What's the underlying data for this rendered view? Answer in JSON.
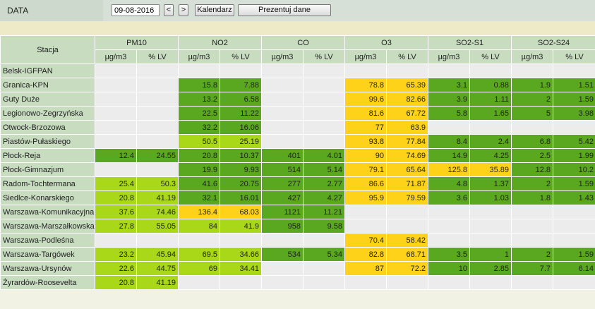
{
  "toolbar": {
    "label": "DATA",
    "date_value": "09-08-2016",
    "prev_label": "<",
    "next_label": ">",
    "calendar_label": "Kalendarz",
    "present_label": "Prezentuj dane"
  },
  "colors": {
    "dark_green": "#59a820",
    "light_green": "#a8d818",
    "yellow": "#ffd21a",
    "empty": "#ececec",
    "header": "#c8dcc0"
  },
  "table": {
    "station_header": "Stacja",
    "pollutants": [
      "PM10",
      "NO2",
      "CO",
      "O3",
      "SO2-S1",
      "SO2-S24"
    ],
    "units": [
      "µg/m3",
      "% LV"
    ],
    "rows": [
      {
        "station": "Belsk-IGFPAN",
        "cells": [
          [
            "",
            "e"
          ],
          [
            "",
            "e"
          ],
          [
            "",
            "e"
          ],
          [
            "",
            "e"
          ],
          [
            "",
            "e"
          ],
          [
            "",
            "e"
          ],
          [
            "",
            "e"
          ],
          [
            "",
            "e"
          ],
          [
            "",
            "e"
          ],
          [
            "",
            "e"
          ],
          [
            "",
            "e"
          ],
          [
            "",
            "e"
          ]
        ]
      },
      {
        "station": "Granica-KPN",
        "cells": [
          [
            "",
            "e"
          ],
          [
            "",
            "e"
          ],
          [
            "15.8",
            "dg"
          ],
          [
            "7.88",
            "dg"
          ],
          [
            "",
            "e"
          ],
          [
            "",
            "e"
          ],
          [
            "78.8",
            "yl"
          ],
          [
            "65.39",
            "yl"
          ],
          [
            "3.1",
            "dg"
          ],
          [
            "0.88",
            "dg"
          ],
          [
            "1.9",
            "dg"
          ],
          [
            "1.51",
            "dg"
          ]
        ]
      },
      {
        "station": "Guty Duże",
        "cells": [
          [
            "",
            "e"
          ],
          [
            "",
            "e"
          ],
          [
            "13.2",
            "dg"
          ],
          [
            "6.58",
            "dg"
          ],
          [
            "",
            "e"
          ],
          [
            "",
            "e"
          ],
          [
            "99.6",
            "yl"
          ],
          [
            "82.66",
            "yl"
          ],
          [
            "3.9",
            "dg"
          ],
          [
            "1.11",
            "dg"
          ],
          [
            "2",
            "dg"
          ],
          [
            "1.59",
            "dg"
          ]
        ]
      },
      {
        "station": "Legionowo-Zegrzyńska",
        "cells": [
          [
            "",
            "e"
          ],
          [
            "",
            "e"
          ],
          [
            "22.5",
            "dg"
          ],
          [
            "11.22",
            "dg"
          ],
          [
            "",
            "e"
          ],
          [
            "",
            "e"
          ],
          [
            "81.6",
            "yl"
          ],
          [
            "67.72",
            "yl"
          ],
          [
            "5.8",
            "dg"
          ],
          [
            "1.65",
            "dg"
          ],
          [
            "5",
            "dg"
          ],
          [
            "3.98",
            "dg"
          ]
        ]
      },
      {
        "station": "Otwock-Brzozowa",
        "cells": [
          [
            "",
            "e"
          ],
          [
            "",
            "e"
          ],
          [
            "32.2",
            "dg"
          ],
          [
            "16.06",
            "dg"
          ],
          [
            "",
            "e"
          ],
          [
            "",
            "e"
          ],
          [
            "77",
            "yl"
          ],
          [
            "63.9",
            "yl"
          ],
          [
            "",
            "e"
          ],
          [
            "",
            "e"
          ],
          [
            "",
            "e"
          ],
          [
            "",
            "e"
          ]
        ]
      },
      {
        "station": "Piastów-Pułaskiego",
        "cells": [
          [
            "",
            "e"
          ],
          [
            "",
            "e"
          ],
          [
            "50.5",
            "lg"
          ],
          [
            "25.19",
            "lg"
          ],
          [
            "",
            "e"
          ],
          [
            "",
            "e"
          ],
          [
            "93.8",
            "yl"
          ],
          [
            "77.84",
            "yl"
          ],
          [
            "8.4",
            "dg"
          ],
          [
            "2.4",
            "dg"
          ],
          [
            "6.8",
            "dg"
          ],
          [
            "5.42",
            "dg"
          ]
        ]
      },
      {
        "station": "Płock-Reja",
        "cells": [
          [
            "12.4",
            "dg"
          ],
          [
            "24.55",
            "dg"
          ],
          [
            "20.8",
            "dg"
          ],
          [
            "10.37",
            "dg"
          ],
          [
            "401",
            "dg"
          ],
          [
            "4.01",
            "dg"
          ],
          [
            "90",
            "yl"
          ],
          [
            "74.69",
            "yl"
          ],
          [
            "14.9",
            "dg"
          ],
          [
            "4.25",
            "dg"
          ],
          [
            "2.5",
            "dg"
          ],
          [
            "1.99",
            "dg"
          ]
        ]
      },
      {
        "station": "Płock-Gimnazjum",
        "cells": [
          [
            "",
            "e"
          ],
          [
            "",
            "e"
          ],
          [
            "19.9",
            "dg"
          ],
          [
            "9.93",
            "dg"
          ],
          [
            "514",
            "dg"
          ],
          [
            "5.14",
            "dg"
          ],
          [
            "79.1",
            "yl"
          ],
          [
            "65.64",
            "yl"
          ],
          [
            "125.8",
            "yl"
          ],
          [
            "35.89",
            "yl"
          ],
          [
            "12.8",
            "dg"
          ],
          [
            "10.2",
            "dg"
          ]
        ]
      },
      {
        "station": "Radom-Tochtermana",
        "cells": [
          [
            "25.4",
            "lg"
          ],
          [
            "50.3",
            "lg"
          ],
          [
            "41.6",
            "dg"
          ],
          [
            "20.75",
            "dg"
          ],
          [
            "277",
            "dg"
          ],
          [
            "2.77",
            "dg"
          ],
          [
            "86.6",
            "yl"
          ],
          [
            "71.87",
            "yl"
          ],
          [
            "4.8",
            "dg"
          ],
          [
            "1.37",
            "dg"
          ],
          [
            "2",
            "dg"
          ],
          [
            "1.59",
            "dg"
          ]
        ]
      },
      {
        "station": "Siedlce-Konarskiego",
        "cells": [
          [
            "20.8",
            "lg"
          ],
          [
            "41.19",
            "lg"
          ],
          [
            "32.1",
            "dg"
          ],
          [
            "16.01",
            "dg"
          ],
          [
            "427",
            "dg"
          ],
          [
            "4.27",
            "dg"
          ],
          [
            "95.9",
            "yl"
          ],
          [
            "79.59",
            "yl"
          ],
          [
            "3.6",
            "dg"
          ],
          [
            "1.03",
            "dg"
          ],
          [
            "1.8",
            "dg"
          ],
          [
            "1.43",
            "dg"
          ]
        ]
      },
      {
        "station": "Warszawa-Komunikacyjna",
        "cells": [
          [
            "37.6",
            "lg"
          ],
          [
            "74.46",
            "lg"
          ],
          [
            "136.4",
            "yl"
          ],
          [
            "68.03",
            "yl"
          ],
          [
            "1121",
            "dg"
          ],
          [
            "11.21",
            "dg"
          ],
          [
            "",
            "e"
          ],
          [
            "",
            "e"
          ],
          [
            "",
            "e"
          ],
          [
            "",
            "e"
          ],
          [
            "",
            "e"
          ],
          [
            "",
            "e"
          ]
        ]
      },
      {
        "station": "Warszawa-Marszałkowska",
        "cells": [
          [
            "27.8",
            "lg"
          ],
          [
            "55.05",
            "lg"
          ],
          [
            "84",
            "lg"
          ],
          [
            "41.9",
            "lg"
          ],
          [
            "958",
            "dg"
          ],
          [
            "9.58",
            "dg"
          ],
          [
            "",
            "e"
          ],
          [
            "",
            "e"
          ],
          [
            "",
            "e"
          ],
          [
            "",
            "e"
          ],
          [
            "",
            "e"
          ],
          [
            "",
            "e"
          ]
        ]
      },
      {
        "station": "Warszawa-Podleśna",
        "cells": [
          [
            "",
            "e"
          ],
          [
            "",
            "e"
          ],
          [
            "",
            "e"
          ],
          [
            "",
            "e"
          ],
          [
            "",
            "e"
          ],
          [
            "",
            "e"
          ],
          [
            "70.4",
            "yl"
          ],
          [
            "58.42",
            "yl"
          ],
          [
            "",
            "e"
          ],
          [
            "",
            "e"
          ],
          [
            "",
            "e"
          ],
          [
            "",
            "e"
          ]
        ]
      },
      {
        "station": "Warszawa-Targówek",
        "cells": [
          [
            "23.2",
            "lg"
          ],
          [
            "45.94",
            "lg"
          ],
          [
            "69.5",
            "lg"
          ],
          [
            "34.66",
            "lg"
          ],
          [
            "534",
            "dg"
          ],
          [
            "5.34",
            "dg"
          ],
          [
            "82.8",
            "yl"
          ],
          [
            "68.71",
            "yl"
          ],
          [
            "3.5",
            "dg"
          ],
          [
            "1",
            "dg"
          ],
          [
            "2",
            "dg"
          ],
          [
            "1.59",
            "dg"
          ]
        ]
      },
      {
        "station": "Warszawa-Ursynów",
        "cells": [
          [
            "22.6",
            "lg"
          ],
          [
            "44.75",
            "lg"
          ],
          [
            "69",
            "lg"
          ],
          [
            "34.41",
            "lg"
          ],
          [
            "",
            "e"
          ],
          [
            "",
            "e"
          ],
          [
            "87",
            "yl"
          ],
          [
            "72.2",
            "yl"
          ],
          [
            "10",
            "dg"
          ],
          [
            "2.85",
            "dg"
          ],
          [
            "7.7",
            "dg"
          ],
          [
            "6.14",
            "dg"
          ]
        ]
      },
      {
        "station": "Żyrardów-Roosevelta",
        "cells": [
          [
            "20.8",
            "lg"
          ],
          [
            "41.19",
            "lg"
          ],
          [
            "",
            "e"
          ],
          [
            "",
            "e"
          ],
          [
            "",
            "e"
          ],
          [
            "",
            "e"
          ],
          [
            "",
            "e"
          ],
          [
            "",
            "e"
          ],
          [
            "",
            "e"
          ],
          [
            "",
            "e"
          ],
          [
            "",
            "e"
          ],
          [
            "",
            "e"
          ]
        ]
      }
    ]
  }
}
